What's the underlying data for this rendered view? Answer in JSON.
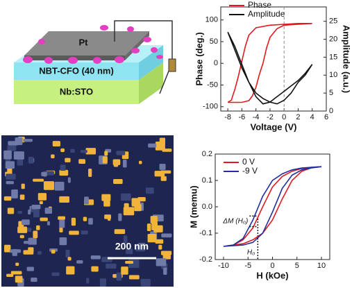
{
  "schematic": {
    "labels": [
      "Pt",
      "NBT-CFO (40 nm)",
      "Nb:STO"
    ]
  },
  "afm": {
    "scale_label": "200 nm"
  },
  "chart_data": [
    {
      "type": "line",
      "xlabel": "Voltage (V)",
      "ylabel": "Phase (deg.)",
      "y2label": "Amplitude (a.u.)",
      "xlim": [
        -9,
        6
      ],
      "xticks": [
        -8,
        -6,
        -4,
        -2,
        0,
        2,
        4,
        6
      ],
      "ylim": [
        -110,
        130
      ],
      "yticks": [
        -100,
        -50,
        0,
        50,
        100
      ],
      "y2lim": [
        0,
        29
      ],
      "y2ticks": [
        0,
        5,
        10,
        15,
        20,
        25
      ],
      "vlines": [
        0
      ],
      "legend": "upper left",
      "series": [
        {
          "name": "Phase",
          "color": "#e0191e",
          "x": [
            -8,
            -6,
            -5,
            -4.5,
            -4,
            -3.5,
            -3,
            -2.5,
            -2,
            -1,
            0,
            2,
            4,
            2,
            0,
            -2,
            -4,
            -5,
            -5.5,
            -6,
            -6.5,
            -7,
            -7.5,
            -8
          ],
          "values": [
            -90,
            -90,
            -86,
            -75,
            -55,
            -25,
            0,
            35,
            60,
            80,
            88,
            90,
            92,
            92,
            90,
            88,
            82,
            65,
            40,
            5,
            -30,
            -60,
            -85,
            -90
          ]
        },
        {
          "name": "Amplitude",
          "color": "#111111",
          "axis": "y2",
          "x": [
            -8,
            -7,
            -6,
            -5,
            -4,
            -3,
            -2,
            -1,
            0,
            1,
            2,
            3,
            4,
            3,
            2,
            1,
            0,
            -1,
            -2,
            -3,
            -4,
            -5,
            -6,
            -7,
            -8
          ],
          "values": [
            22,
            18,
            13,
            8,
            4,
            2,
            2.5,
            4,
            5.5,
            7,
            8.5,
            10.5,
            13,
            10,
            8,
            5,
            3,
            2,
            2.5,
            3.5,
            5,
            8,
            12,
            17,
            22
          ]
        }
      ]
    },
    {
      "type": "line",
      "xlabel": "H (kOe)",
      "ylabel": "M (memu)",
      "xlim": [
        -11.7,
        11.7
      ],
      "xticks": [
        -10,
        -5,
        0,
        5,
        10
      ],
      "ylim": [
        -0.2,
        0.2
      ],
      "yticks": [
        -0.2,
        -0.1,
        {
          "value": 0,
          "label": "0.0"
        },
        0.1,
        0.2
      ],
      "vlines": [
        -3
      ],
      "annotations": [
        "ΔM (H₀)",
        "H₀"
      ],
      "legend": "upper left",
      "series": [
        {
          "name": "0 V",
          "color": "#e0191e",
          "x": [
            -10,
            -6,
            -4,
            -2,
            0,
            2,
            4,
            6,
            8,
            10,
            8,
            6,
            4,
            2,
            0,
            -2,
            -4,
            -6,
            -8,
            -10
          ],
          "values": [
            -0.15,
            -0.14,
            -0.125,
            -0.1,
            -0.05,
            0.03,
            0.1,
            0.135,
            0.148,
            0.152,
            0.15,
            0.145,
            0.135,
            0.115,
            0.075,
            0.0,
            -0.08,
            -0.125,
            -0.145,
            -0.15
          ]
        },
        {
          "name": "-9 V",
          "color": "#1f2f9e",
          "x": [
            -10,
            -6,
            -4,
            -2,
            0,
            2,
            4,
            6,
            8,
            10,
            8,
            6,
            4,
            2,
            0,
            -2,
            -4,
            -6,
            -8,
            -10
          ],
          "values": [
            -0.15,
            -0.145,
            -0.135,
            -0.1,
            -0.02,
            0.07,
            0.12,
            0.14,
            0.148,
            0.152,
            0.15,
            0.147,
            0.14,
            0.125,
            0.1,
            0.04,
            -0.05,
            -0.12,
            -0.145,
            -0.15
          ]
        }
      ]
    }
  ]
}
